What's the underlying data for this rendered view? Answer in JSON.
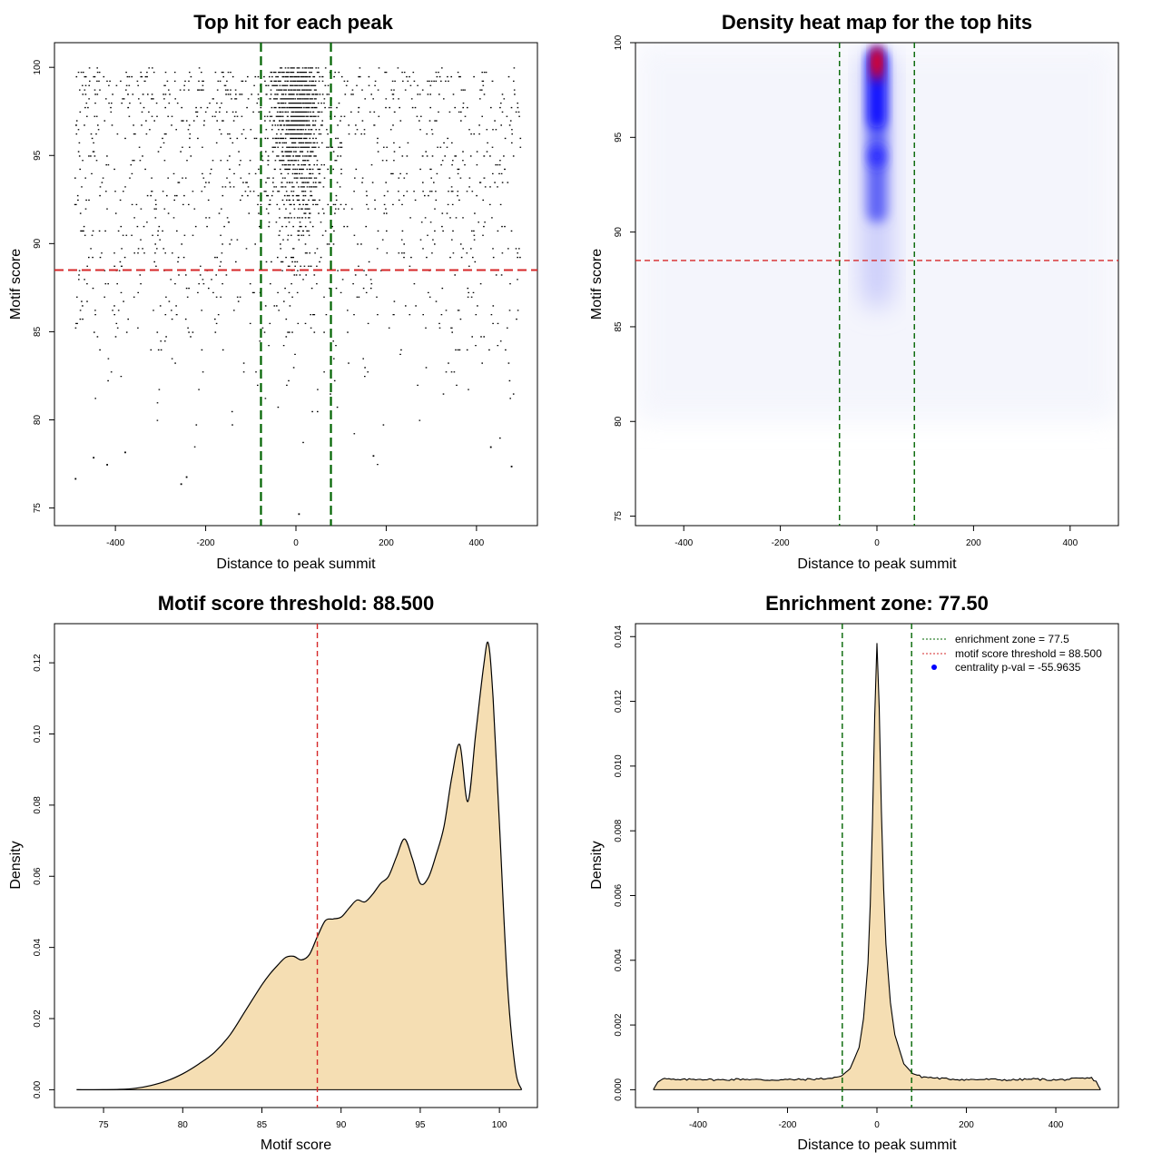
{
  "colors": {
    "threshold": "#d62728",
    "zone": "#006400",
    "fill": "#f5deb3",
    "line": "#000000",
    "heat_low": "#ffffff",
    "heat_mid": "#0000ff",
    "heat_high": "#ff0000"
  },
  "chart_data": [
    {
      "id": "scatter",
      "type": "scatter",
      "title": "Top hit for each peak",
      "xlabel": "Distance to peak summit",
      "ylabel": "Motif score",
      "xlim": [
        -535,
        535
      ],
      "ylim": [
        74,
        101.4
      ],
      "xticks": [
        -400,
        -200,
        0,
        200,
        400
      ],
      "yticks": [
        75,
        80,
        85,
        90,
        95,
        100
      ],
      "hline": 88.5,
      "vlines": [
        -77.5,
        77.5
      ],
      "x_range_points": [
        -493,
        496
      ],
      "sample_points": [
        {
          "x": -490,
          "y": 76.7
        },
        {
          "x": -256,
          "y": 76.4
        },
        {
          "x": -244,
          "y": 76.8
        },
        {
          "x": 5,
          "y": 74.7
        },
        {
          "x": -450,
          "y": 77.9
        },
        {
          "x": 476,
          "y": 77.4
        },
        {
          "x": -420,
          "y": 77.5
        },
        {
          "x": -380,
          "y": 78.2
        },
        {
          "x": 170,
          "y": 78.0
        },
        {
          "x": 430,
          "y": 78.5
        }
      ],
      "note_points": "approx. 20000 points; dense near x = 0 and y > 85"
    },
    {
      "id": "heatmap",
      "type": "heatmap",
      "title": "Density heat map for the top hits",
      "xlabel": "Distance to peak summit",
      "ylabel": "Motif score",
      "xlim": [
        -500,
        500
      ],
      "ylim": [
        74.5,
        100
      ],
      "xticks": [
        -400,
        -200,
        0,
        200,
        400
      ],
      "yticks": [
        75,
        80,
        85,
        90,
        95,
        100
      ],
      "hline": 88.5,
      "vlines": [
        -77.5,
        77.5
      ],
      "color_scale": [
        "white",
        "blue",
        "red"
      ],
      "hotspots": [
        {
          "x": 0,
          "y": 99,
          "intensity": "high"
        },
        {
          "x": 0,
          "y": 97,
          "intensity": "medium"
        },
        {
          "x": 0,
          "y": 94,
          "intensity": "medium"
        },
        {
          "x": 0,
          "y": 91,
          "intensity": "low"
        },
        {
          "x": 0,
          "y": 87,
          "intensity": "faint"
        }
      ]
    },
    {
      "id": "score_density",
      "type": "area",
      "title": "Motif score threshold: 88.500",
      "xlabel": "Motif score",
      "ylabel": "Density",
      "xlim": [
        71.9,
        102.4
      ],
      "ylim": [
        -0.005,
        0.131
      ],
      "xticks": [
        75,
        80,
        85,
        90,
        95,
        100
      ],
      "yticks": [
        0.0,
        0.02,
        0.04,
        0.06,
        0.08,
        0.1,
        0.12
      ],
      "ytick_labels": [
        "0.00",
        "0.02",
        "0.04",
        "0.06",
        "0.08",
        "0.10",
        "0.12"
      ],
      "vline": 88.5,
      "x": [
        73.3,
        75,
        76,
        77,
        78,
        79,
        80,
        81,
        82,
        83,
        84,
        85,
        85.5,
        86,
        86.5,
        87,
        87.5,
        88,
        88.5,
        89,
        89.5,
        90,
        90.5,
        91,
        91.5,
        92,
        92.5,
        93,
        93.5,
        94,
        94.5,
        95,
        95.5,
        96,
        96.5,
        97,
        97.5,
        98,
        98.5,
        99,
        99.3,
        99.6,
        100,
        100.5,
        101,
        101.4
      ],
      "y": [
        0.0,
        0.0,
        0.0001,
        0.0004,
        0.0012,
        0.0025,
        0.0045,
        0.0072,
        0.0105,
        0.0155,
        0.0225,
        0.0295,
        0.0325,
        0.035,
        0.0372,
        0.0375,
        0.0365,
        0.038,
        0.043,
        0.0475,
        0.048,
        0.0485,
        0.051,
        0.0533,
        0.0528,
        0.055,
        0.058,
        0.06,
        0.0655,
        0.0705,
        0.065,
        0.058,
        0.0595,
        0.066,
        0.074,
        0.088,
        0.097,
        0.081,
        0.1,
        0.119,
        0.1255,
        0.11,
        0.075,
        0.03,
        0.006,
        0.0
      ]
    },
    {
      "id": "distance_density",
      "type": "area",
      "title": "Enrichment zone: 77.50",
      "xlabel": "Distance to peak summit",
      "ylabel": "Density",
      "xlim": [
        -540,
        540
      ],
      "ylim": [
        -0.00055,
        0.0144
      ],
      "xticks": [
        -400,
        -200,
        0,
        200,
        400
      ],
      "yticks": [
        0.0,
        0.002,
        0.004,
        0.006,
        0.008,
        0.01,
        0.012,
        0.014
      ],
      "ytick_labels": [
        "0.000",
        "0.002",
        "0.004",
        "0.006",
        "0.008",
        "0.010",
        "0.012",
        "0.014"
      ],
      "vlines": [
        -77.5,
        77.5
      ],
      "x": [
        -500,
        -490,
        -480,
        -450,
        -400,
        -350,
        -300,
        -250,
        -200,
        -150,
        -100,
        -80,
        -60,
        -40,
        -30,
        -20,
        -15,
        -10,
        -5,
        0,
        5,
        10,
        15,
        20,
        30,
        40,
        60,
        80,
        100,
        150,
        200,
        250,
        300,
        350,
        400,
        450,
        480,
        490,
        500
      ],
      "y": [
        0.0,
        0.00025,
        0.00035,
        0.0003,
        0.00033,
        0.0003,
        0.00033,
        0.0003,
        0.00031,
        0.00032,
        0.00036,
        0.00042,
        0.00065,
        0.0013,
        0.0022,
        0.0039,
        0.0057,
        0.0083,
        0.0115,
        0.0138,
        0.0118,
        0.0086,
        0.0062,
        0.0045,
        0.0027,
        0.0017,
        0.0008,
        0.0005,
        0.0004,
        0.00034,
        0.00031,
        0.00032,
        0.0003,
        0.00033,
        0.0003,
        0.00034,
        0.00036,
        0.00025,
        0.0
      ],
      "legend": [
        {
          "label": "enrichment zone = 77.5",
          "style": "dotted",
          "color": "#006400"
        },
        {
          "label": "motif score threshold = 88.500",
          "style": "dotted",
          "color": "#d62728"
        },
        {
          "label": "centrality p-val = -55.9635",
          "style": "point",
          "color": "#0000ff"
        }
      ],
      "legend_position": "top-right"
    }
  ]
}
